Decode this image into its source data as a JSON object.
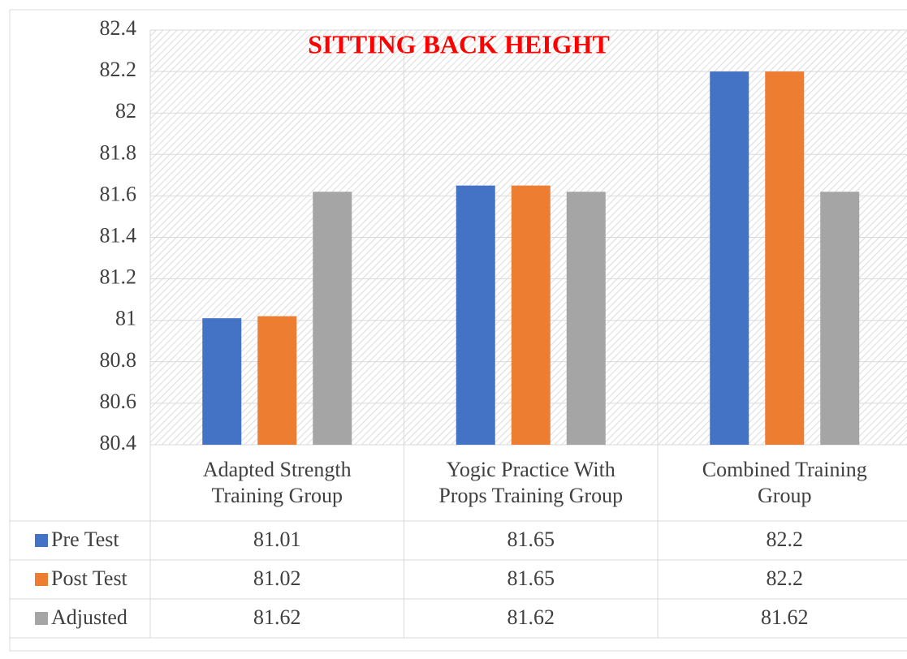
{
  "chart_data": {
    "type": "bar",
    "title": "SITTING BACK HEIGHT",
    "categories": [
      "Adapted Strength Training Group",
      "Yogic Practice With Props Training Group",
      "Combined Training Group"
    ],
    "series": [
      {
        "name": "Pre Test",
        "color": "#4472c4",
        "values": [
          81.01,
          81.65,
          82.2
        ]
      },
      {
        "name": "Post Test",
        "color": "#ed7d31",
        "values": [
          81.02,
          81.65,
          82.2
        ]
      },
      {
        "name": "Adjusted",
        "color": "#a5a5a5",
        "values": [
          81.62,
          81.62,
          81.62
        ]
      }
    ],
    "ylim": [
      80.4,
      82.4
    ],
    "yticks": [
      80.4,
      80.6,
      80.8,
      81,
      81.2,
      81.4,
      81.6,
      81.8,
      82,
      82.2,
      82.4
    ],
    "grid": true,
    "data_table": true
  }
}
